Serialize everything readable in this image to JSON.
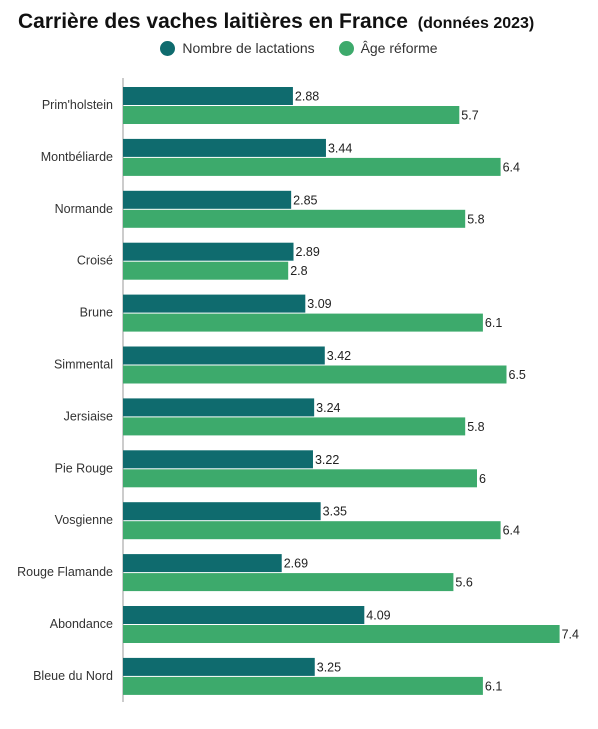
{
  "title": "Carrière des vaches laitières en France",
  "subtitle": "(données 2023)",
  "colors": {
    "series1": "#0f6b6e",
    "series2": "#3daa6c",
    "axis": "#999999"
  },
  "chart_data": {
    "type": "bar",
    "orientation": "horizontal",
    "title": "Carrière des vaches laitières en France",
    "subtitle": "(données 2023)",
    "legend_position": "top",
    "grid": false,
    "xlim": [
      0,
      7.6
    ],
    "categories": [
      "Prim'holstein",
      "Montbéliarde",
      "Normande",
      "Croisé",
      "Brune",
      "Simmental",
      "Jersiaise",
      "Pie Rouge",
      "Vosgienne",
      "Rouge Flamande",
      "Abondance",
      "Bleue du Nord"
    ],
    "series": [
      {
        "name": "Nombre de lactations",
        "color": "#0f6b6e",
        "values": [
          2.88,
          3.44,
          2.85,
          2.89,
          3.09,
          3.42,
          3.24,
          3.22,
          3.35,
          2.69,
          4.09,
          3.25
        ]
      },
      {
        "name": "Âge réforme",
        "color": "#3daa6c",
        "values": [
          5.7,
          6.4,
          5.8,
          2.8,
          6.1,
          6.5,
          5.8,
          6,
          6.4,
          5.6,
          7.4,
          6.1
        ]
      }
    ]
  }
}
